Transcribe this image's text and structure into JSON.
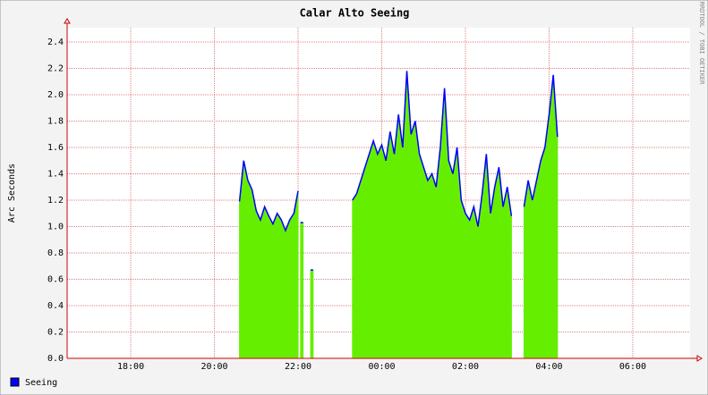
{
  "chart_data": {
    "type": "area-line",
    "title": "Calar Alto Seeing",
    "y_label": "Arc Seconds",
    "watermark": "RRDTOOL / TOBI OETIKER",
    "x": [
      20.6,
      20.7,
      20.8,
      20.9,
      21.0,
      21.1,
      21.2,
      21.3,
      21.4,
      21.5,
      21.6,
      21.7,
      21.8,
      21.9,
      22.0,
      22.03,
      22.06,
      22.12,
      22.2,
      22.3,
      22.36,
      23.0,
      23.3,
      23.4,
      23.5,
      23.6,
      23.7,
      23.8,
      23.9,
      24.0,
      24.1,
      24.2,
      24.3,
      24.4,
      24.5,
      24.6,
      24.7,
      24.8,
      24.9,
      25.0,
      25.1,
      25.2,
      25.3,
      25.4,
      25.5,
      25.6,
      25.7,
      25.8,
      25.9,
      26.0,
      26.1,
      26.2,
      26.3,
      26.4,
      26.5,
      26.6,
      26.7,
      26.8,
      26.9,
      27.0,
      27.1,
      27.25,
      27.4,
      27.5,
      27.6,
      27.7,
      27.8,
      27.9,
      28.0,
      28.1,
      28.2
    ],
    "series": [
      {
        "name": "Seeing",
        "color": "#0000ff",
        "area_color": "#66ee00",
        "values": [
          1.19,
          1.5,
          1.35,
          1.28,
          1.12,
          1.05,
          1.15,
          1.08,
          1.02,
          1.1,
          1.05,
          0.97,
          1.05,
          1.1,
          1.27,
          null,
          1.03,
          1.03,
          null,
          0.67,
          0.67,
          null,
          1.2,
          1.25,
          1.35,
          1.45,
          1.55,
          1.65,
          1.55,
          1.62,
          1.5,
          1.72,
          1.55,
          1.85,
          1.6,
          2.18,
          1.7,
          1.8,
          1.55,
          1.45,
          1.35,
          1.4,
          1.3,
          1.6,
          2.05,
          1.5,
          1.4,
          1.6,
          1.2,
          1.1,
          1.05,
          1.15,
          1.0,
          1.25,
          1.55,
          1.1,
          1.3,
          1.45,
          1.15,
          1.3,
          1.08,
          null,
          1.15,
          1.35,
          1.2,
          1.35,
          1.5,
          1.6,
          1.85,
          2.15,
          1.68
        ]
      }
    ],
    "xlim": [
      16.48,
      31.37
    ],
    "xticks": [
      {
        "value": 18,
        "label": "18:00"
      },
      {
        "value": 20,
        "label": "20:00"
      },
      {
        "value": 22,
        "label": "22:00"
      },
      {
        "value": 24,
        "label": "00:00"
      },
      {
        "value": 26,
        "label": "02:00"
      },
      {
        "value": 28,
        "label": "04:00"
      },
      {
        "value": 30,
        "label": "06:00"
      }
    ],
    "ylim": [
      0,
      2.4
    ],
    "yticks": [
      {
        "value": 0,
        "label": "0.0"
      },
      0.2,
      0.4,
      0.6,
      0.8,
      {
        "value": 1,
        "label": "1.0"
      },
      1.2,
      1.4,
      1.6,
      1.8,
      {
        "value": 2,
        "label": "2.0"
      },
      2.2,
      2.4
    ],
    "grid": true
  }
}
